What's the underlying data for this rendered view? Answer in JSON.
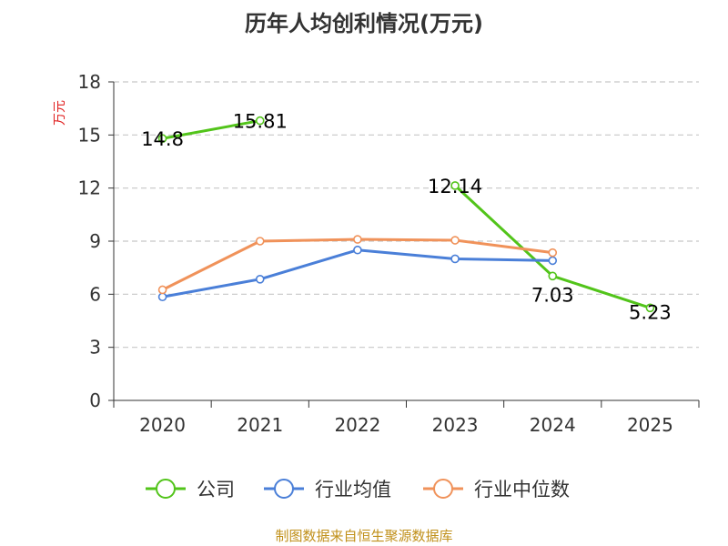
{
  "chart_data": {
    "type": "line",
    "title": "历年人均创利情况(万元)",
    "ylabel": "万元",
    "xlabel": "",
    "ylim": [
      0,
      18
    ],
    "yticks": [
      0,
      3,
      6,
      9,
      12,
      15,
      18
    ],
    "categories": [
      "2020",
      "2021",
      "2022",
      "2023",
      "2024",
      "2025"
    ],
    "grid": true,
    "legend_position": "bottom",
    "series": [
      {
        "name": "公司",
        "color": "#52c41a",
        "segments": [
          [
            {
              "x": "2020",
              "y": 14.8
            },
            {
              "x": "2021",
              "y": 15.81
            }
          ],
          [
            {
              "x": "2023",
              "y": 12.14
            },
            {
              "x": "2024",
              "y": 7.03
            },
            {
              "x": "2025",
              "y": 5.23
            }
          ]
        ],
        "data_labels": [
          {
            "x": "2020",
            "y": 14.8,
            "text": "14.8"
          },
          {
            "x": "2021",
            "y": 15.81,
            "text": "15.81"
          },
          {
            "x": "2023",
            "y": 12.14,
            "text": "12.14"
          },
          {
            "x": "2024",
            "y": 7.03,
            "text": "7.03"
          },
          {
            "x": "2025",
            "y": 5.23,
            "text": "5.23"
          }
        ]
      },
      {
        "name": "行业均值",
        "color": "#4a7fd8",
        "segments": [
          [
            {
              "x": "2020",
              "y": 5.85
            },
            {
              "x": "2021",
              "y": 6.85
            },
            {
              "x": "2022",
              "y": 8.5
            },
            {
              "x": "2023",
              "y": 8.0
            },
            {
              "x": "2024",
              "y": 7.9
            }
          ]
        ],
        "data_labels": []
      },
      {
        "name": "行业中位数",
        "color": "#f0925a",
        "segments": [
          [
            {
              "x": "2020",
              "y": 6.25
            },
            {
              "x": "2021",
              "y": 9.0
            },
            {
              "x": "2022",
              "y": 9.1
            },
            {
              "x": "2023",
              "y": 9.05
            },
            {
              "x": "2024",
              "y": 8.35
            }
          ]
        ],
        "data_labels": []
      }
    ]
  },
  "source_text": "制图数据来自恒生聚源数据库"
}
